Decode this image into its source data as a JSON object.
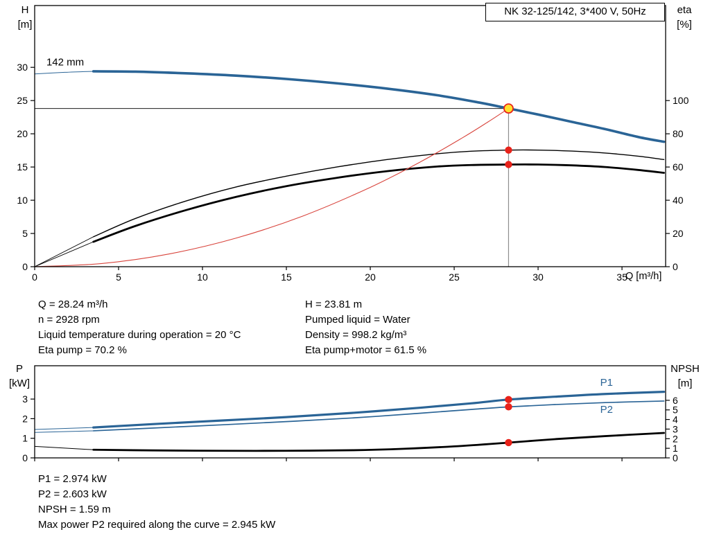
{
  "colors": {
    "blue": "#2a6496",
    "black": "#000000",
    "red": "#d8433b",
    "marker_red": "#e8221a",
    "duty_yellow": "#ffe12e",
    "duty_line_gray": "#8c8c8c"
  },
  "info_top": {
    "col1": [
      "Q = 28.24 m³/h",
      "n = 2928 rpm",
      "Liquid temperature during operation = 20 °C",
      "Eta pump = 70.2 %"
    ],
    "col2": [
      "H = 23.81 m",
      "Pumped liquid = Water",
      "Density = 998.2 kg/m³",
      "Eta pump+motor = 61.5 %"
    ]
  },
  "info_bottom": [
    "P1 = 2.974 kW",
    "P2 = 2.603 kW",
    "NPSH = 1.59 m",
    "Max power P2 required along the curve = 2.945 kW"
  ],
  "chart_data": [
    {
      "id": "qh",
      "type": "line",
      "title": "NK 32-125/142, 3*400 V, 50Hz",
      "x_axis": {
        "label": "Q [m³/h]",
        "min": 0,
        "max": 37.6,
        "ticks": [
          0,
          5,
          10,
          15,
          20,
          25,
          30,
          35
        ]
      },
      "y_left": {
        "label": "H",
        "unit": "[m]",
        "min": 0,
        "max": 39.3,
        "ticks": [
          0,
          5,
          10,
          15,
          20,
          25,
          30
        ]
      },
      "y_right": {
        "label": "eta",
        "unit": "[%]",
        "min": 0,
        "max": 157.2,
        "ticks": [
          0,
          20,
          40,
          60,
          80,
          100
        ]
      },
      "grid": false,
      "duty": {
        "q": 28.24,
        "h": 23.81
      },
      "series": [
        {
          "name": "pump-curve-lead",
          "axis": "left",
          "color": "blue",
          "width": 1,
          "x": [
            0,
            1.8,
            3.5
          ],
          "y": [
            29.0,
            29.25,
            29.4
          ]
        },
        {
          "name": "pump-curve-142mm",
          "axis": "left",
          "color": "blue",
          "width": 3.6,
          "x": [
            3.5,
            6,
            9,
            12,
            15,
            18,
            21,
            24,
            26.5,
            28.24,
            30,
            32,
            34,
            36,
            37.5
          ],
          "y": [
            29.4,
            29.35,
            29.1,
            28.75,
            28.25,
            27.6,
            26.8,
            25.8,
            24.7,
            23.81,
            22.9,
            21.8,
            20.7,
            19.5,
            18.8
          ]
        },
        {
          "name": "eta-pump-lead",
          "axis": "right",
          "color": "black",
          "width": 0.9,
          "x": [
            0,
            3.5
          ],
          "y": [
            0,
            18
          ]
        },
        {
          "name": "eta-pump",
          "axis": "right",
          "color": "black",
          "width": 1.4,
          "x": [
            3.5,
            6,
            9,
            12,
            15,
            18,
            21,
            24,
            26,
            28.24,
            30,
            32,
            34,
            36,
            37.5
          ],
          "y": [
            18,
            29,
            39.5,
            48,
            54.5,
            60,
            64.5,
            68,
            69.5,
            70.2,
            70.2,
            69.6,
            68.4,
            66.5,
            64.5
          ]
        },
        {
          "name": "eta-pump-motor-lead",
          "axis": "right",
          "color": "black",
          "width": 0.9,
          "x": [
            0,
            3.5
          ],
          "y": [
            0,
            15
          ]
        },
        {
          "name": "eta-pump-motor",
          "axis": "right",
          "color": "black",
          "width": 2.8,
          "x": [
            3.5,
            6,
            9,
            12,
            15,
            18,
            21,
            24,
            26,
            28.24,
            30,
            32,
            34,
            36,
            37.5
          ],
          "y": [
            15,
            24.5,
            34,
            42,
            48.5,
            53.5,
            57.5,
            60.3,
            61.2,
            61.5,
            61.5,
            61,
            60,
            58.2,
            56.5
          ]
        },
        {
          "name": "qh-parabola",
          "axis": "left",
          "color": "red",
          "width": 1.1,
          "x": [
            0,
            4,
            8,
            12,
            16,
            20,
            23,
            25.5,
            27,
            28.24
          ],
          "y": [
            0,
            0.48,
            1.91,
            4.3,
            7.64,
            11.94,
            15.79,
            19.41,
            21.76,
            23.81
          ]
        }
      ],
      "markers": [
        {
          "name": "eta-pump-point",
          "axis": "right",
          "x": 28.24,
          "y": 70.2,
          "style": "red"
        },
        {
          "name": "eta-pump-motor-point",
          "axis": "right",
          "x": 28.24,
          "y": 61.5,
          "style": "red"
        },
        {
          "name": "duty-point",
          "axis": "left",
          "x": 28.24,
          "y": 23.81,
          "style": "duty"
        }
      ],
      "annotations": [
        {
          "name": "impeller-size-label",
          "text": "142 mm",
          "axis": "left",
          "x": 0.7,
          "y": 30.3,
          "size": 15,
          "color": "black"
        }
      ]
    },
    {
      "id": "pn",
      "type": "line",
      "title": "",
      "x_axis": {
        "label": "",
        "min": 0,
        "max": 37.6,
        "ticks": [
          0,
          5,
          10,
          15,
          20,
          25,
          30,
          35
        ]
      },
      "y_left": {
        "label": "P",
        "unit": "[kW]",
        "min": 0,
        "max": 4.7,
        "ticks": [
          0,
          1,
          2,
          3
        ]
      },
      "y_right": {
        "label": "NPSH",
        "unit": "[m]",
        "min": 0,
        "max": 9.6,
        "ticks": [
          0,
          1,
          2,
          3,
          4,
          5,
          6
        ]
      },
      "grid": false,
      "series": [
        {
          "name": "p1-lead",
          "axis": "left",
          "color": "blue",
          "width": 1,
          "x": [
            0,
            3.5
          ],
          "y": [
            1.45,
            1.55
          ]
        },
        {
          "name": "p1",
          "axis": "left",
          "color": "blue",
          "width": 3.2,
          "x": [
            3.5,
            7,
            11,
            15,
            19,
            23,
            26,
            28.24,
            31,
            34,
            37.5
          ],
          "y": [
            1.55,
            1.72,
            1.9,
            2.08,
            2.3,
            2.56,
            2.78,
            2.974,
            3.12,
            3.26,
            3.37
          ]
        },
        {
          "name": "p2-lead",
          "axis": "left",
          "color": "blue",
          "width": 1,
          "x": [
            0,
            3.5
          ],
          "y": [
            1.3,
            1.38
          ]
        },
        {
          "name": "p2",
          "axis": "left",
          "color": "blue",
          "width": 1.7,
          "x": [
            3.5,
            7,
            11,
            15,
            19,
            23,
            26,
            28.24,
            31,
            34,
            37.5
          ],
          "y": [
            1.38,
            1.52,
            1.68,
            1.85,
            2.04,
            2.28,
            2.47,
            2.603,
            2.72,
            2.82,
            2.9
          ]
        },
        {
          "name": "npsh-lead",
          "axis": "right",
          "color": "black",
          "width": 1,
          "x": [
            0,
            3.5
          ],
          "y": [
            1.2,
            0.85
          ]
        },
        {
          "name": "npsh",
          "axis": "right",
          "color": "black",
          "width": 2.8,
          "x": [
            3.5,
            7,
            11,
            15,
            19,
            22,
            25,
            28.24,
            31,
            34,
            37.5
          ],
          "y": [
            0.85,
            0.78,
            0.74,
            0.74,
            0.8,
            0.95,
            1.2,
            1.59,
            1.95,
            2.27,
            2.6
          ]
        }
      ],
      "markers": [
        {
          "name": "p1-point",
          "axis": "left",
          "x": 28.24,
          "y": 2.974,
          "style": "red"
        },
        {
          "name": "p2-point",
          "axis": "left",
          "x": 28.24,
          "y": 2.603,
          "style": "red"
        },
        {
          "name": "npsh-point",
          "axis": "right",
          "x": 28.24,
          "y": 1.59,
          "style": "red"
        }
      ],
      "annotations": [
        {
          "name": "p1-curve-label",
          "text": "P1",
          "axis": "left",
          "x": 33.7,
          "y": 3.67,
          "size": 15,
          "color": "blue"
        },
        {
          "name": "p2-curve-label",
          "text": "P2",
          "axis": "left",
          "x": 33.7,
          "y": 2.3,
          "size": 15,
          "color": "blue"
        }
      ]
    }
  ]
}
